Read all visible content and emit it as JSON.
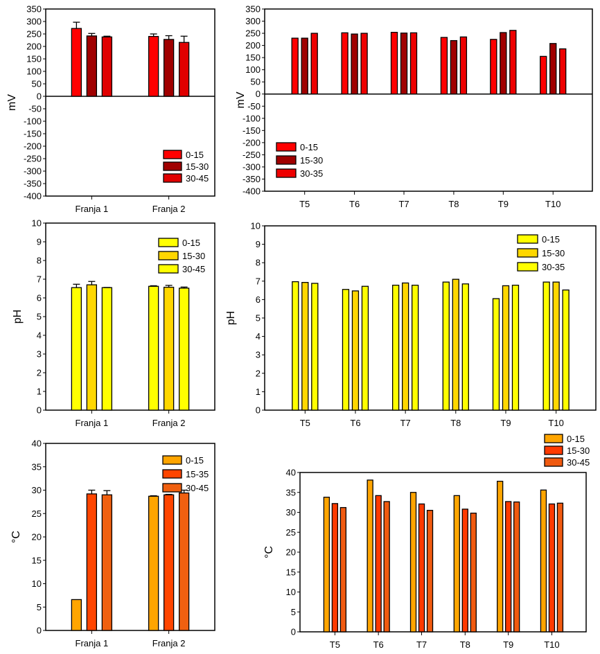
{
  "figure": {
    "description": "Six-panel bar chart figure: redox potential (mV), pH and temperature (°C) by soil depth",
    "panels": [
      "redox-franja",
      "redox-t",
      "ph-franja",
      "ph-t",
      "temp-franja",
      "temp-t"
    ]
  },
  "chart_data": [
    {
      "id": "redox-franja",
      "type": "bar",
      "title": "",
      "xlabel": "",
      "ylabel": "mV",
      "ylim": [
        -400,
        350
      ],
      "yticks": [
        350,
        300,
        250,
        200,
        150,
        100,
        50,
        0,
        -50,
        -100,
        -150,
        -200,
        -250,
        -300,
        -350,
        -400
      ],
      "grid": false,
      "legend_position": "bottom-right",
      "categories": [
        "Franja 1",
        "Franja 2"
      ],
      "series": [
        {
          "name": "0-15",
          "color": "#ff0000",
          "values": [
            272,
            240
          ],
          "errors": [
            25,
            10
          ]
        },
        {
          "name": "15-30",
          "color": "#a00000",
          "values": [
            242,
            228
          ],
          "errors": [
            10,
            15
          ]
        },
        {
          "name": "30-45",
          "color": "#e00000",
          "values": [
            238,
            216
          ],
          "errors": [
            3,
            25
          ]
        }
      ]
    },
    {
      "id": "redox-t",
      "type": "bar",
      "title": "",
      "xlabel": "",
      "ylabel": "mV",
      "ylim": [
        -400,
        350
      ],
      "yticks": [
        350,
        300,
        250,
        200,
        150,
        100,
        50,
        0,
        -50,
        -100,
        -150,
        -200,
        -250,
        -300,
        -350,
        -400
      ],
      "grid": false,
      "legend_position": "bottom-left",
      "categories": [
        "T5",
        "T6",
        "T7",
        "T8",
        "T9",
        "T10"
      ],
      "series": [
        {
          "name": "0-15",
          "color": "#ff0000",
          "values": [
            230,
            252,
            254,
            233,
            225,
            155
          ]
        },
        {
          "name": "15-30",
          "color": "#a00000",
          "values": [
            230,
            247,
            251,
            220,
            253,
            208
          ]
        },
        {
          "name": "30-35",
          "color": "#ee0000",
          "values": [
            250,
            250,
            252,
            235,
            262,
            186
          ]
        }
      ]
    },
    {
      "id": "ph-franja",
      "type": "bar",
      "title": "",
      "xlabel": "",
      "ylabel": "pH",
      "ylim": [
        0,
        10
      ],
      "yticks": [
        10,
        9,
        8,
        7,
        6,
        5,
        4,
        3,
        2,
        1,
        0
      ],
      "grid": false,
      "legend_position": "top-right",
      "categories": [
        "Franja 1",
        "Franja 2"
      ],
      "series": [
        {
          "name": "0-15",
          "color": "#ffff00",
          "values": [
            6.55,
            6.62
          ],
          "errors": [
            0.18,
            0.03
          ]
        },
        {
          "name": "15-30",
          "color": "#ffd700",
          "values": [
            6.7,
            6.57
          ],
          "errors": [
            0.18,
            0.1
          ]
        },
        {
          "name": "30-45",
          "color": "#ffff00",
          "values": [
            6.55,
            6.52
          ],
          "errors": [
            0.01,
            0.06
          ]
        }
      ]
    },
    {
      "id": "ph-t",
      "type": "bar",
      "title": "",
      "xlabel": "",
      "ylabel": "pH",
      "ylim": [
        0,
        10
      ],
      "yticks": [
        10,
        9,
        8,
        7,
        6,
        5,
        4,
        3,
        2,
        1,
        0
      ],
      "grid": false,
      "legend_position": "top-right",
      "categories": [
        "T5",
        "T6",
        "T7",
        "T8",
        "T9",
        "T10"
      ],
      "series": [
        {
          "name": "0-15",
          "color": "#ffff00",
          "values": [
            6.97,
            6.55,
            6.78,
            6.95,
            6.05,
            6.95
          ]
        },
        {
          "name": "15-30",
          "color": "#ffd700",
          "values": [
            6.93,
            6.47,
            6.9,
            7.1,
            6.75,
            6.95
          ]
        },
        {
          "name": "30-35",
          "color": "#ffff00",
          "values": [
            6.88,
            6.72,
            6.78,
            6.85,
            6.78,
            6.52
          ]
        }
      ]
    },
    {
      "id": "temp-franja",
      "type": "bar",
      "title": "",
      "xlabel": "",
      "ylabel": "°C",
      "ylim": [
        0,
        40
      ],
      "yticks": [
        40,
        35,
        30,
        25,
        20,
        15,
        10,
        5,
        0
      ],
      "grid": false,
      "legend_position": "top-right",
      "categories": [
        "Franja 1",
        "Franja 2"
      ],
      "series": [
        {
          "name": "0-15",
          "color": "#ffa500",
          "values": [
            6.6,
            28.7
          ],
          "errors": [
            0,
            0.1
          ]
        },
        {
          "name": "15-35",
          "color": "#ff4500",
          "values": [
            29.2,
            29.0
          ],
          "errors": [
            0.8,
            0.1
          ]
        },
        {
          "name": "30-45",
          "color": "#f06010",
          "values": [
            29.0,
            29.4
          ],
          "errors": [
            0.9,
            0.6
          ]
        }
      ]
    },
    {
      "id": "temp-t",
      "type": "bar",
      "title": "",
      "xlabel": "",
      "ylabel": "°C",
      "ylim": [
        0,
        40
      ],
      "yticks": [
        40,
        35,
        30,
        25,
        20,
        15,
        10,
        5,
        0
      ],
      "grid": false,
      "legend_position": "above-top-right",
      "categories": [
        "T5",
        "T6",
        "T7",
        "T8",
        "T9",
        "T10"
      ],
      "series": [
        {
          "name": "0-15",
          "color": "#ffa500",
          "values": [
            33.8,
            38.1,
            35.0,
            34.2,
            37.8,
            35.6
          ]
        },
        {
          "name": "15-30",
          "color": "#ff3a00",
          "values": [
            32.2,
            34.2,
            32.1,
            30.8,
            32.7,
            32.1
          ]
        },
        {
          "name": "30-45",
          "color": "#f05a10",
          "values": [
            31.2,
            32.7,
            30.5,
            29.8,
            32.6,
            32.3
          ]
        }
      ]
    }
  ]
}
